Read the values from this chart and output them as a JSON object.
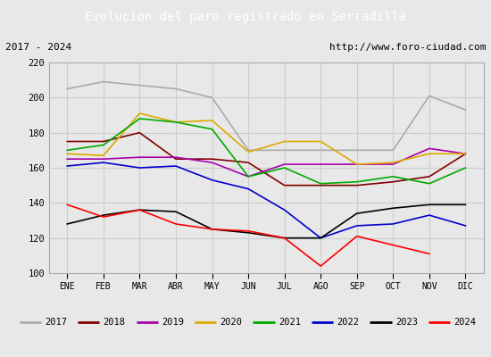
{
  "title": "Evolucion del paro registrado en Serradilla",
  "title_color": "#ffffff",
  "title_bg": "#4472c4",
  "subtitle_left": "2017 - 2024",
  "subtitle_right": "http://www.foro-ciudad.com",
  "months": [
    "ENE",
    "FEB",
    "MAR",
    "ABR",
    "MAY",
    "JUN",
    "JUL",
    "AGO",
    "SEP",
    "OCT",
    "NOV",
    "DIC"
  ],
  "ylim": [
    100,
    220
  ],
  "yticks": [
    100,
    120,
    140,
    160,
    180,
    200,
    220
  ],
  "series": {
    "2017": {
      "color": "#aaaaaa",
      "data": [
        205,
        209,
        207,
        205,
        200,
        170,
        170,
        170,
        170,
        170,
        201,
        193
      ]
    },
    "2018": {
      "color": "#800000",
      "data": [
        175,
        175,
        180,
        165,
        165,
        163,
        150,
        150,
        150,
        152,
        155,
        168
      ]
    },
    "2019": {
      "color": "#aa00aa",
      "data": [
        165,
        165,
        166,
        166,
        163,
        155,
        162,
        162,
        162,
        162,
        171,
        168
      ]
    },
    "2020": {
      "color": "#ddaa00",
      "data": [
        168,
        167,
        191,
        186,
        187,
        169,
        175,
        175,
        162,
        163,
        168,
        168
      ]
    },
    "2021": {
      "color": "#00aa00",
      "data": [
        170,
        173,
        188,
        186,
        182,
        155,
        160,
        151,
        152,
        155,
        151,
        160
      ]
    },
    "2022": {
      "color": "#0000cc",
      "data": [
        161,
        163,
        160,
        161,
        153,
        148,
        136,
        120,
        127,
        128,
        133,
        127
      ]
    },
    "2023": {
      "color": "#000000",
      "data": [
        128,
        133,
        136,
        135,
        125,
        123,
        120,
        120,
        134,
        137,
        139,
        139
      ]
    },
    "2024": {
      "color": "#ff0000",
      "data": [
        139,
        132,
        136,
        128,
        125,
        124,
        120,
        104,
        121,
        116,
        111,
        null
      ]
    }
  },
  "background_color": "#e8e8e8",
  "plot_bg": "#e8e8e8",
  "grid_color": "#cccccc"
}
